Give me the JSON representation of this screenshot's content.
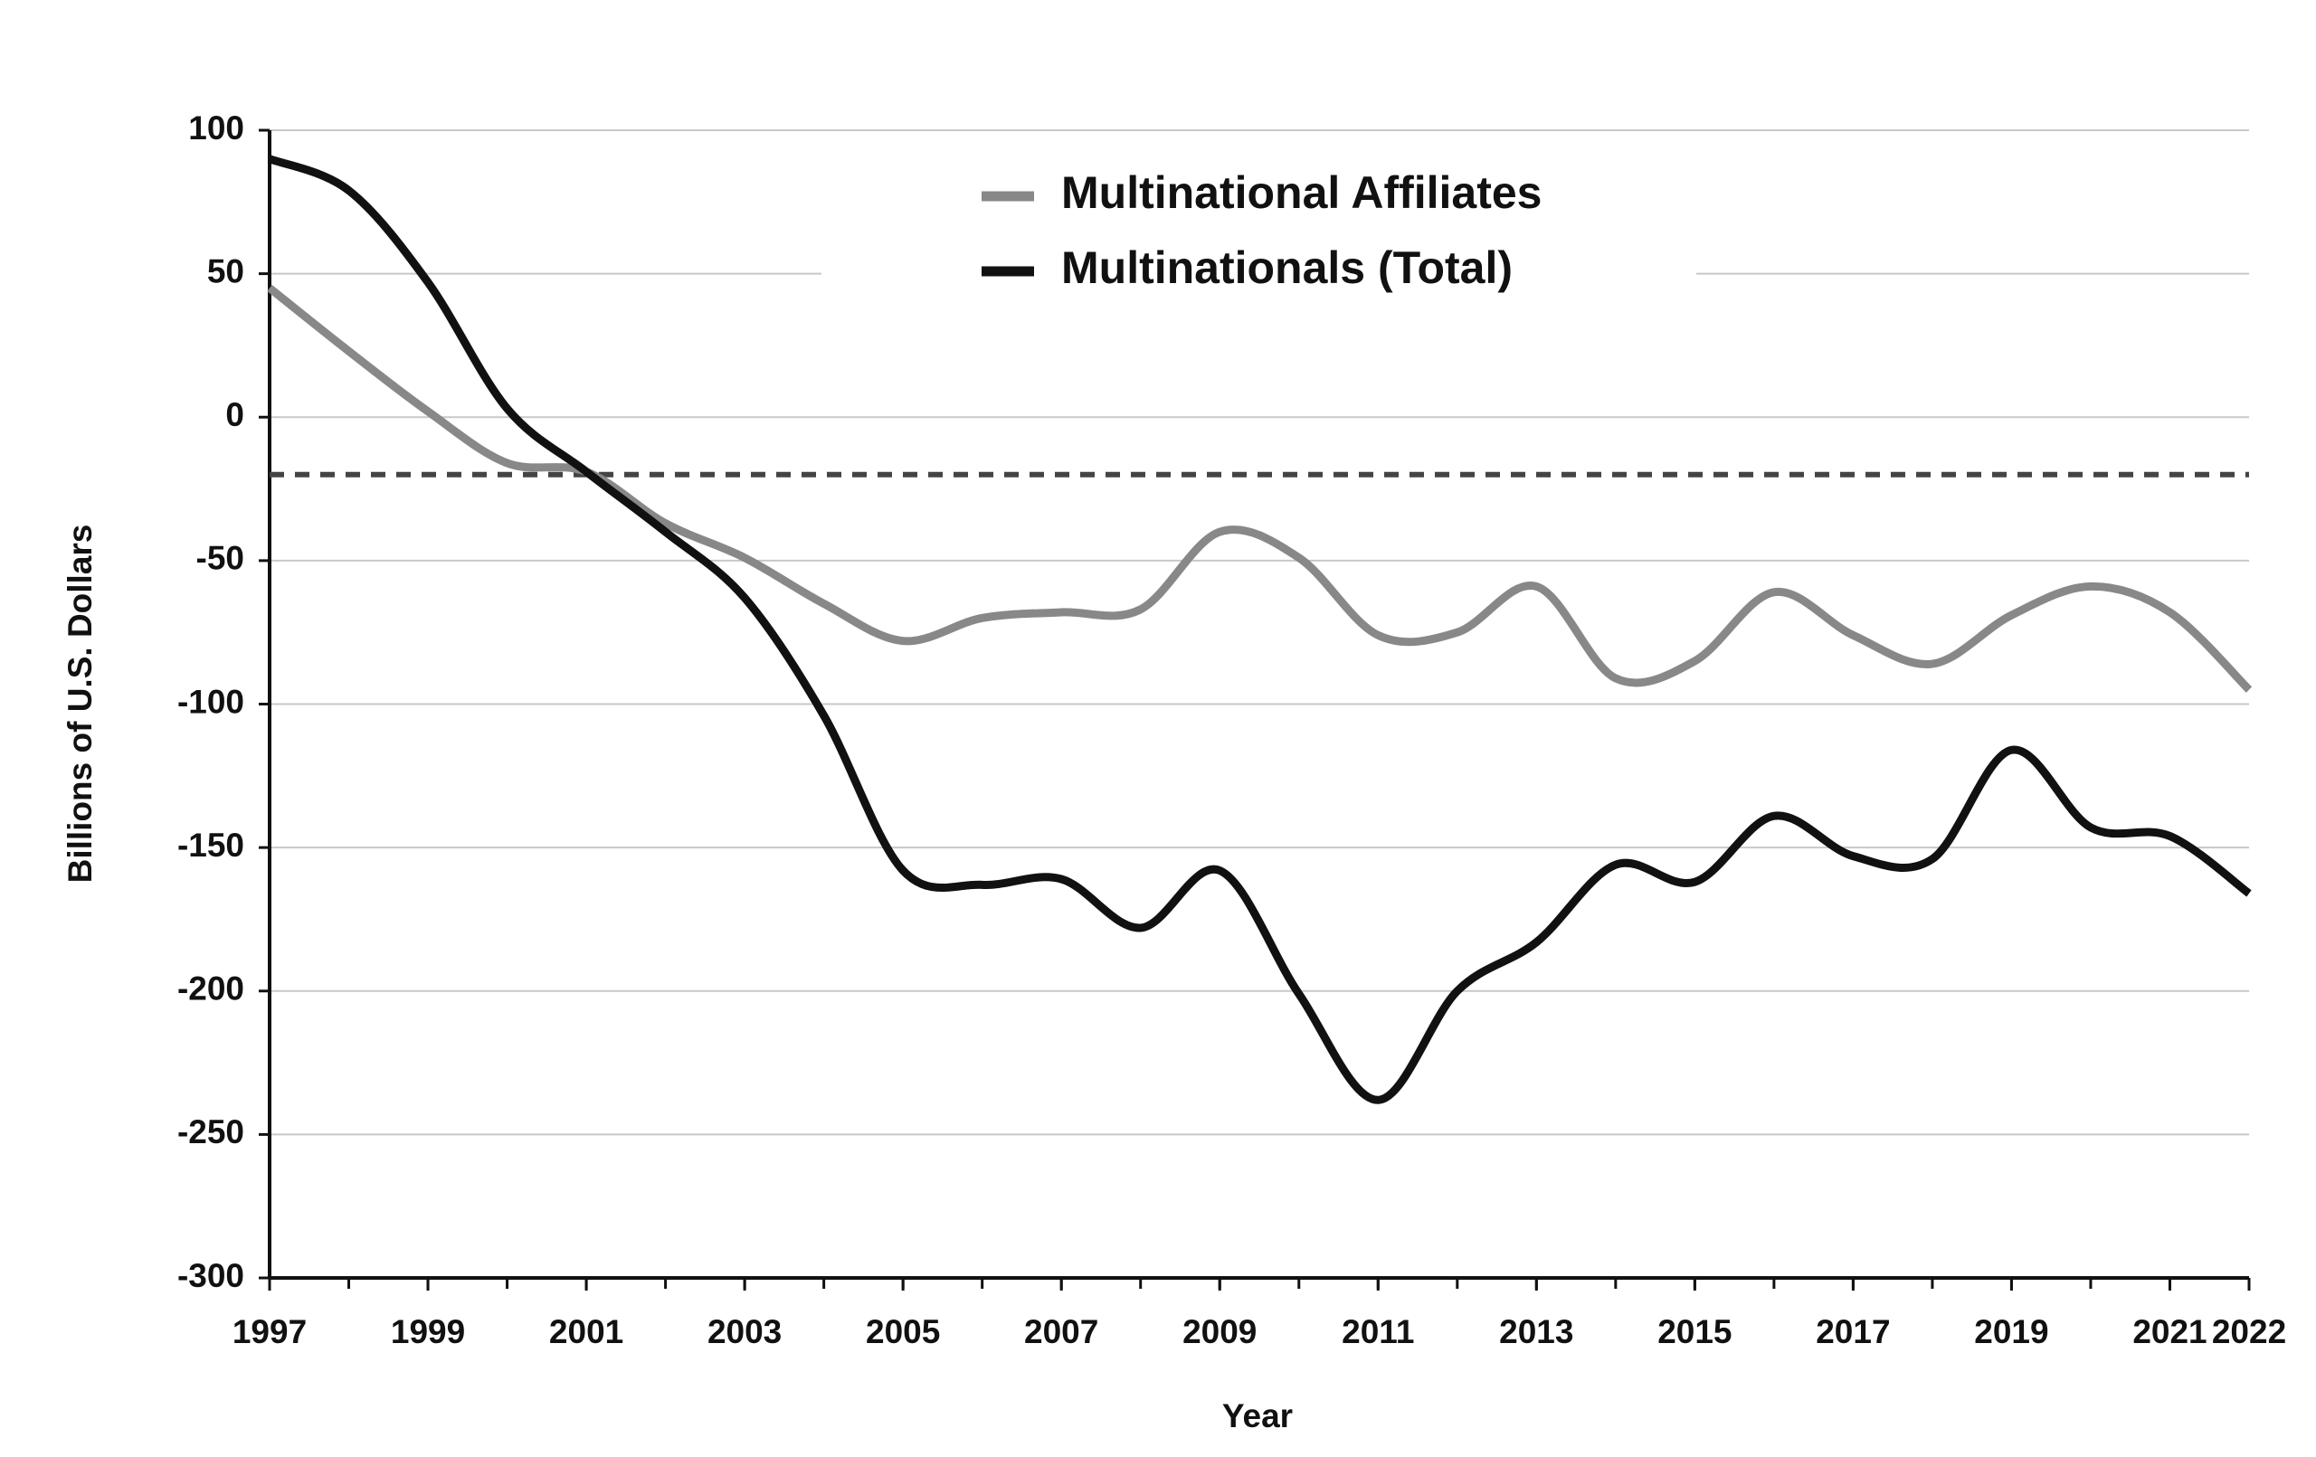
{
  "chart_data": {
    "type": "line",
    "x_label": "Year",
    "y_label": "Billions of U.S. Dollars",
    "x": [
      1997,
      1998,
      1999,
      2000,
      2001,
      2002,
      2003,
      2004,
      2005,
      2006,
      2007,
      2008,
      2009,
      2010,
      2011,
      2012,
      2013,
      2014,
      2015,
      2016,
      2017,
      2018,
      2019,
      2020,
      2021,
      2022
    ],
    "series": [
      {
        "name": "Multinational Affiliates",
        "color": "#888888",
        "values": [
          45,
          23,
          2,
          -16,
          -19,
          -37,
          -49,
          -65,
          -78,
          -70,
          -68,
          -67,
          -40,
          -49,
          -76,
          -75,
          -59,
          -91,
          -85,
          -61,
          -76,
          -86,
          -69,
          -59,
          -68,
          -95
        ]
      },
      {
        "name": "Multinationals (Total)",
        "color": "#111111",
        "values": [
          90,
          79,
          47,
          3,
          -19,
          -40,
          -63,
          -104,
          -158,
          -163,
          -161,
          -178,
          -158,
          -201,
          -238,
          -200,
          -183,
          -156,
          -162,
          -139,
          -153,
          -154,
          -116,
          -143,
          -146,
          -166
        ]
      }
    ],
    "reference_line": -20,
    "xlim": [
      1997,
      2022
    ],
    "xticks": [
      1997,
      1999,
      2001,
      2003,
      2005,
      2007,
      2009,
      2011,
      2013,
      2015,
      2017,
      2019,
      2021,
      2022
    ],
    "ylim": [
      -300,
      100
    ],
    "yticks": [
      -300,
      -250,
      -200,
      -150,
      -100,
      -50,
      0,
      50,
      100
    ],
    "grid": true
  }
}
